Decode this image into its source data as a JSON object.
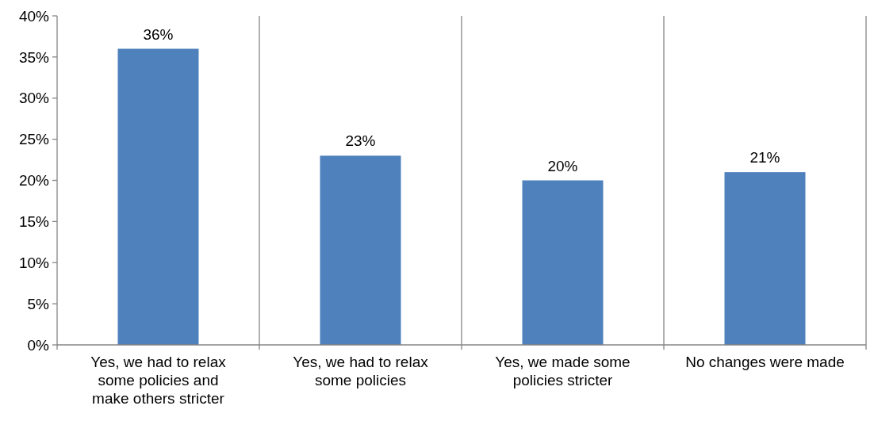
{
  "chart_data": {
    "type": "bar",
    "categories": [
      "Yes, we had to relax some policies and make others stricter",
      "Yes, we had to relax some policies",
      "Yes, we made some policies stricter",
      "No changes were made"
    ],
    "values": [
      36,
      23,
      20,
      21
    ],
    "value_labels": [
      "36%",
      "23%",
      "20%",
      "21%"
    ],
    "color": "#4f81bd",
    "ylim": [
      0,
      40
    ],
    "yticks": [
      {
        "value": 0,
        "label": "0%"
      },
      {
        "value": 5,
        "label": "5%"
      },
      {
        "value": 10,
        "label": "10%"
      },
      {
        "value": 15,
        "label": "15%"
      },
      {
        "value": 20,
        "label": "20%"
      },
      {
        "value": 25,
        "label": "25%"
      },
      {
        "value": 30,
        "label": "30%"
      },
      {
        "value": 35,
        "label": "35%"
      },
      {
        "value": 40,
        "label": "40%"
      }
    ],
    "grid": "x"
  }
}
